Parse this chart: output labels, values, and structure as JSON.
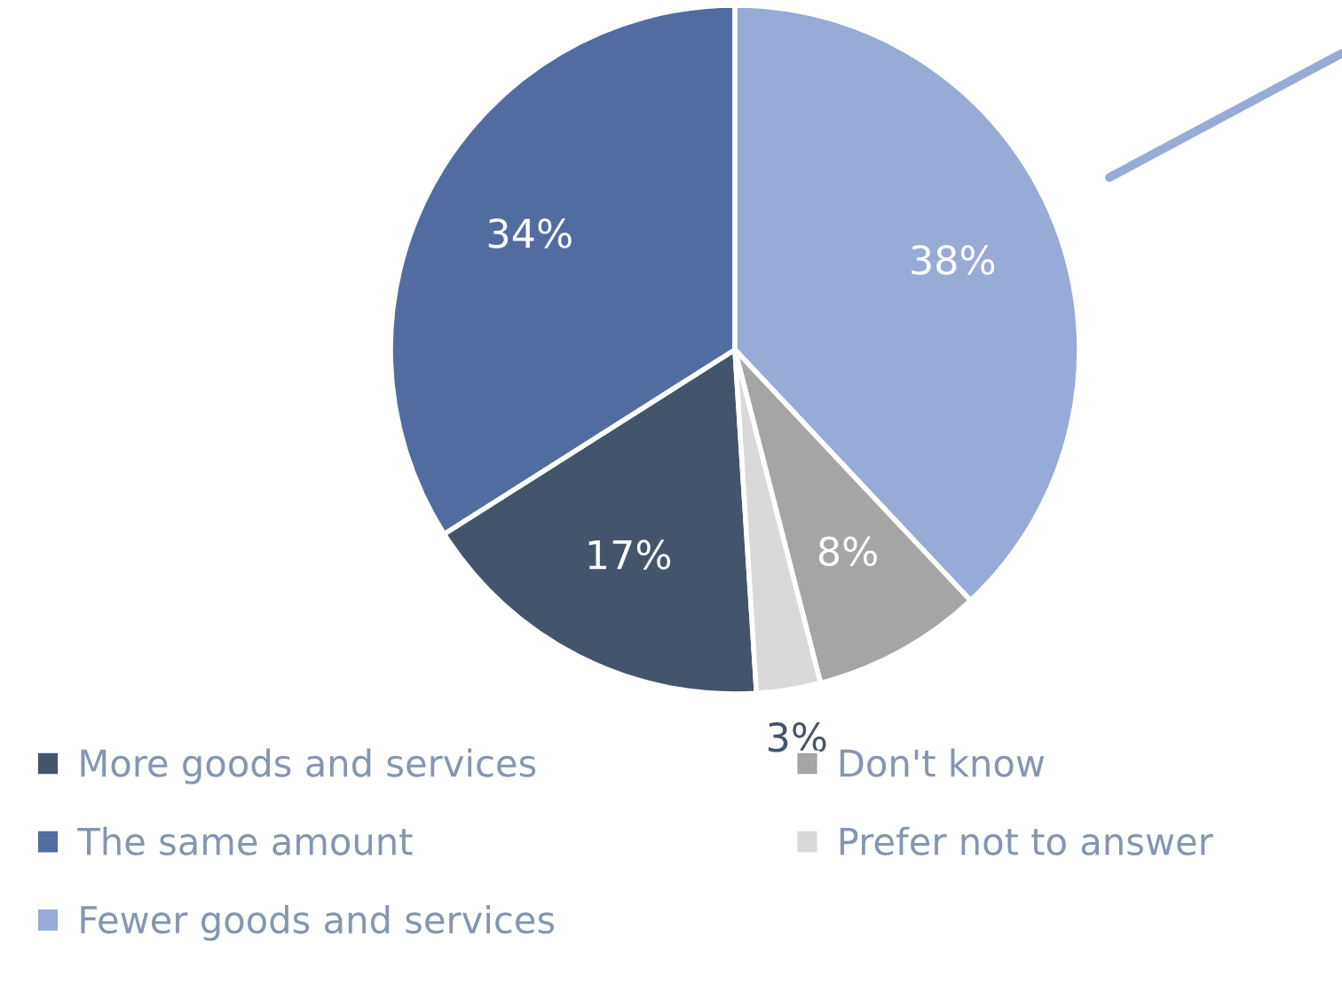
{
  "chart_data": {
    "type": "pie",
    "categories": [
      "More goods and services",
      "The same amount",
      "Fewer goods and services",
      "Don't know",
      "Prefer not to answer"
    ],
    "values": [
      17,
      34,
      38,
      8,
      3
    ],
    "colors": [
      "#44546a",
      "#516ca1",
      "#98aad6",
      "#a5a5a5",
      "#d9d9d9"
    ],
    "value_labels": [
      "17%",
      "34%",
      "38%",
      "8%",
      "3%"
    ],
    "legend": "bottom"
  }
}
